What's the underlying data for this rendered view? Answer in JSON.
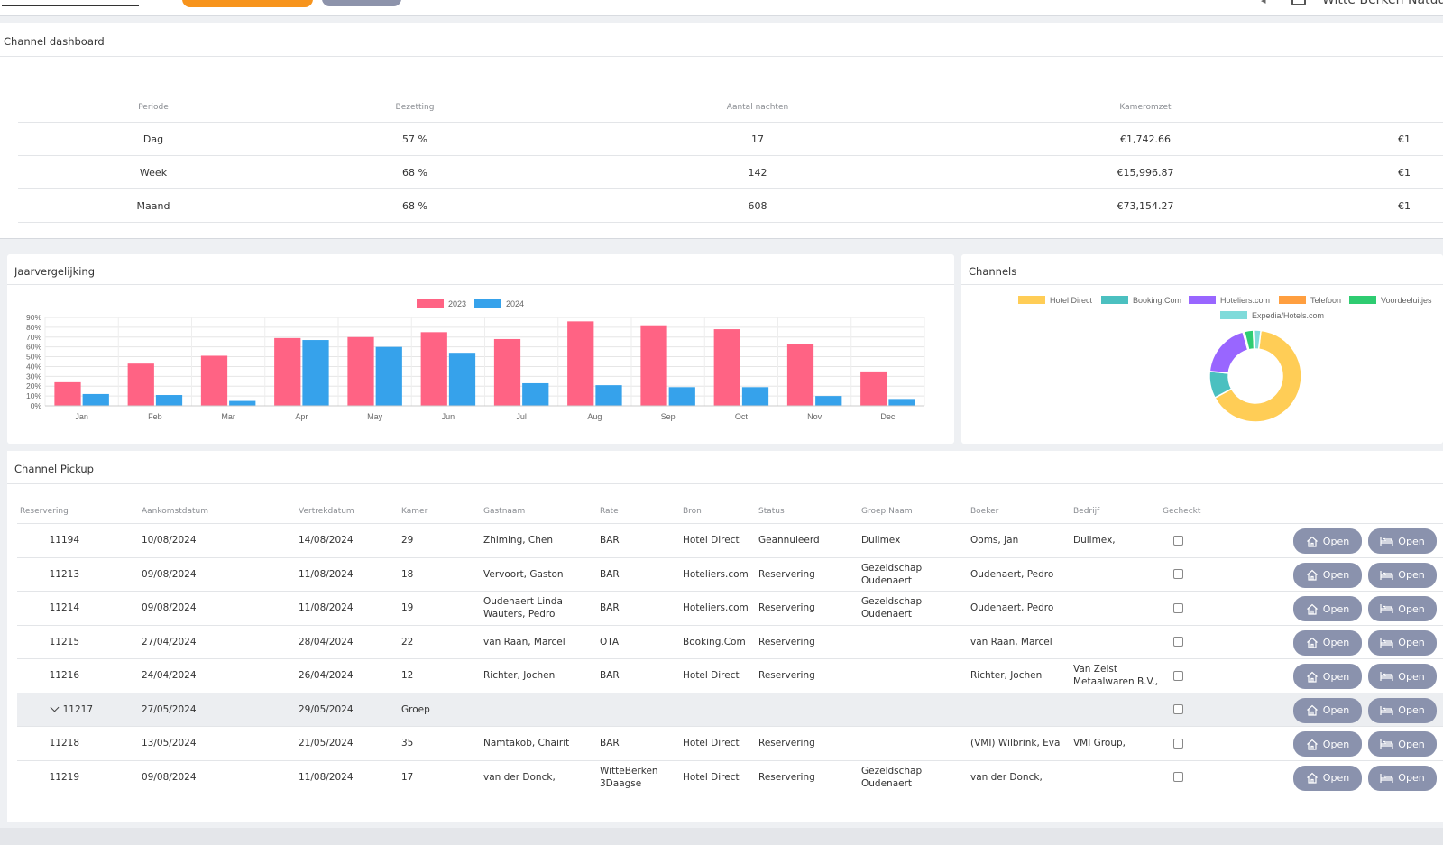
{
  "topbar": {
    "user_name": "Witte Berken Natuurr"
  },
  "dashboard": {
    "title": "Channel dashboard",
    "headers": [
      "Periode",
      "Bezetting",
      "Aantal nachten",
      "Kameromzet"
    ],
    "rows": [
      {
        "periode": "Dag",
        "bezetting": "57 %",
        "nachten": "17",
        "omzet": "€1,742.66",
        "extra": "€1"
      },
      {
        "periode": "Week",
        "bezetting": "68 %",
        "nachten": "142",
        "omzet": "€15,996.87",
        "extra": "€1"
      },
      {
        "periode": "Maand",
        "bezetting": "68 %",
        "nachten": "608",
        "omzet": "€73,154.27",
        "extra": "€1"
      }
    ]
  },
  "year_panel": {
    "title": "Jaarvergelijking"
  },
  "channels_panel": {
    "title": "Channels"
  },
  "chart_data": [
    {
      "type": "bar",
      "categories": [
        "Jan",
        "Feb",
        "Mar",
        "Apr",
        "May",
        "Jun",
        "Jul",
        "Aug",
        "Sep",
        "Oct",
        "Nov",
        "Dec"
      ],
      "series": [
        {
          "name": "2023",
          "color": "#ff6384",
          "values": [
            24,
            43,
            51,
            69,
            70,
            75,
            68,
            86,
            82,
            78,
            63,
            35
          ]
        },
        {
          "name": "2024",
          "color": "#36a2eb",
          "values": [
            12,
            11,
            5,
            67,
            60,
            54,
            23,
            21,
            19,
            19,
            10,
            7
          ]
        }
      ],
      "yticks": [
        "90%",
        "80%",
        "70%",
        "60%",
        "50%",
        "40%",
        "30%",
        "20%",
        "10%",
        "0%"
      ],
      "ylim": [
        0,
        90
      ],
      "grid": true,
      "legend": "top"
    },
    {
      "type": "pie",
      "donut": true,
      "labels": [
        "Hotel Direct",
        "Booking.Com",
        "Hoteliers.com",
        "Telefoon",
        "Voordeeluitjes",
        "Expedia/Hotels.com"
      ],
      "colors": [
        "#ffcd56",
        "#4bc0c0",
        "#9966ff",
        "#ff9f40",
        "#2ecc71",
        "#7fdbda"
      ],
      "values": [
        62,
        9,
        18,
        0.5,
        3,
        2.5
      ],
      "legend": "top"
    }
  ],
  "pickup": {
    "title": "Channel Pickup",
    "headers": [
      "Reservering",
      "Aankomstdatum",
      "Vertrekdatum",
      "Kamer",
      "Gastnaam",
      "Rate",
      "Bron",
      "Status",
      "Groep Naam",
      "Boeker",
      "Bedrijf",
      "Gecheckt"
    ],
    "button_label": "Open",
    "rows": [
      {
        "res": "11194",
        "aankomst": "10/08/2024",
        "vertrek": "14/08/2024",
        "kamer": "29",
        "gast": "Zhiming, Chen",
        "rate": "BAR",
        "bron": "Hotel Direct",
        "status": "Geannuleerd",
        "groep": "Dulimex",
        "boeker": "Ooms, Jan",
        "bedrijf": "Dulimex,"
      },
      {
        "res": "11213",
        "aankomst": "09/08/2024",
        "vertrek": "11/08/2024",
        "kamer": "18",
        "gast": "Vervoort, Gaston",
        "rate": "BAR",
        "bron": "Hoteliers.com",
        "status": "Reservering",
        "groep": "Gezeldschap Oudenaert",
        "boeker": "Oudenaert, Pedro",
        "bedrijf": ""
      },
      {
        "res": "11214",
        "aankomst": "09/08/2024",
        "vertrek": "11/08/2024",
        "kamer": "19",
        "gast": "Oudenaert Linda Wauters, Pedro",
        "rate": "BAR",
        "bron": "Hoteliers.com",
        "status": "Reservering",
        "groep": "Gezeldschap Oudenaert",
        "boeker": "Oudenaert, Pedro",
        "bedrijf": ""
      },
      {
        "res": "11215",
        "aankomst": "27/04/2024",
        "vertrek": "28/04/2024",
        "kamer": "22",
        "gast": "van Raan, Marcel",
        "rate": "OTA",
        "bron": "Booking.Com",
        "status": "Reservering",
        "groep": "",
        "boeker": "van Raan, Marcel",
        "bedrijf": ""
      },
      {
        "res": "11216",
        "aankomst": "24/04/2024",
        "vertrek": "26/04/2024",
        "kamer": "12",
        "gast": "Richter, Jochen",
        "rate": "BAR",
        "bron": "Hotel Direct",
        "status": "Reservering",
        "groep": "",
        "boeker": "Richter, Jochen",
        "bedrijf": "Van Zelst Metaalwaren B.V.,"
      },
      {
        "res": "11217",
        "aankomst": "27/05/2024",
        "vertrek": "29/05/2024",
        "kamer": "Groep",
        "gast": "",
        "rate": "",
        "bron": "",
        "status": "",
        "groep": "",
        "boeker": "",
        "bedrijf": ""
      },
      {
        "res": "11218",
        "aankomst": "13/05/2024",
        "vertrek": "21/05/2024",
        "kamer": "35",
        "gast": "Namtakob, Chairit",
        "rate": "BAR",
        "bron": "Hotel Direct",
        "status": "Reservering",
        "groep": "",
        "boeker": "(VMI) Wilbrink, Eva",
        "bedrijf": "VMI Group,"
      },
      {
        "res": "11219",
        "aankomst": "09/08/2024",
        "vertrek": "11/08/2024",
        "kamer": "17",
        "gast": "van der Donck,",
        "rate": "WitteBerken 3Daagse",
        "bron": "Hotel Direct",
        "status": "Reservering",
        "groep": "Gezeldschap Oudenaert",
        "boeker": "van der Donck,",
        "bedrijf": ""
      }
    ]
  }
}
